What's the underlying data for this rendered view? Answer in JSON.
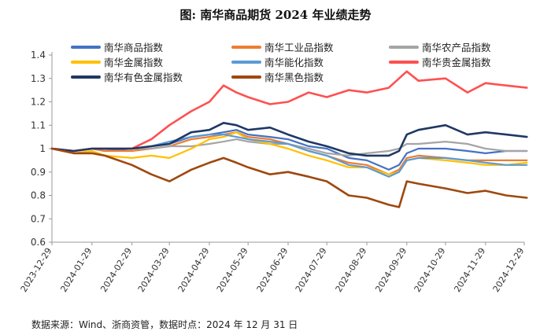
{
  "header": {
    "title": "图:   南华商品期货 2024 年业绩走势"
  },
  "footer": {
    "source": "数据来源：Wind、浙商资管，数据时点：2024 年 12 月 31 日"
  },
  "chart_data": {
    "type": "line",
    "title": "南华商品期货 2024 年业绩走势",
    "ylim": [
      0.6,
      1.4
    ],
    "yticks": [
      "0.6",
      "0.7",
      "0.8",
      "0.9",
      "1",
      "1.1",
      "1.2",
      "1.3",
      "1.4"
    ],
    "x_ticks": [
      "2023-12-29",
      "2024-01-29",
      "2024-02-29",
      "2024-03-29",
      "2024-04-29",
      "2024-05-29",
      "2024-06-29",
      "2024-07-29",
      "2024-08-29",
      "2024-09-29",
      "2024-10-29",
      "2024-11-29",
      "2024-12-29"
    ],
    "x_points": [
      "2023-12-29",
      "2024-01-15",
      "2024-01-29",
      "2024-02-08",
      "2024-02-29",
      "2024-03-15",
      "2024-03-29",
      "2024-04-15",
      "2024-04-29",
      "2024-05-10",
      "2024-05-20",
      "2024-05-29",
      "2024-06-15",
      "2024-06-29",
      "2024-07-15",
      "2024-07-29",
      "2024-08-15",
      "2024-08-29",
      "2024-09-15",
      "2024-09-23",
      "2024-09-29",
      "2024-10-08",
      "2024-10-29",
      "2024-11-15",
      "2024-11-29",
      "2024-12-15",
      "2024-12-31"
    ],
    "series": [
      {
        "name": "南华商品指数",
        "color": "#4472C4",
        "width": 2.2,
        "values": [
          1.0,
          0.99,
          1.0,
          0.99,
          1.0,
          1.01,
          1.02,
          1.05,
          1.06,
          1.07,
          1.08,
          1.06,
          1.05,
          1.04,
          1.01,
          1.0,
          0.96,
          0.95,
          0.91,
          0.93,
          0.98,
          1.0,
          1.0,
          0.99,
          0.98,
          0.99,
          0.99
        ]
      },
      {
        "name": "南华工业品指数",
        "color": "#ED7D31",
        "width": 2.2,
        "values": [
          1.0,
          0.99,
          1.0,
          0.99,
          0.99,
          1.0,
          1.01,
          1.04,
          1.05,
          1.06,
          1.07,
          1.05,
          1.04,
          1.02,
          0.99,
          0.97,
          0.94,
          0.93,
          0.89,
          0.91,
          0.96,
          0.97,
          0.96,
          0.95,
          0.95,
          0.95,
          0.95
        ]
      },
      {
        "name": "南华农产品指数",
        "color": "#A5A5A5",
        "width": 2.2,
        "values": [
          1.0,
          0.99,
          1.0,
          1.0,
          1.0,
          1.0,
          1.01,
          1.01,
          1.02,
          1.03,
          1.04,
          1.03,
          1.02,
          1.02,
          1.0,
          0.98,
          0.97,
          0.98,
          0.99,
          1.0,
          1.02,
          1.02,
          1.03,
          1.02,
          1.0,
          0.99,
          0.99
        ]
      },
      {
        "name": "南华金属指数",
        "color": "#FFC000",
        "width": 2.2,
        "values": [
          1.0,
          0.98,
          0.99,
          0.97,
          0.96,
          0.97,
          0.96,
          1.0,
          1.04,
          1.05,
          1.07,
          1.04,
          1.02,
          1.0,
          0.97,
          0.95,
          0.92,
          0.92,
          0.89,
          0.9,
          0.95,
          0.96,
          0.95,
          0.94,
          0.93,
          0.93,
          0.94
        ]
      },
      {
        "name": "南华能化指数",
        "color": "#5B9BD5",
        "width": 2.2,
        "values": [
          1.0,
          0.99,
          1.0,
          1.0,
          1.0,
          1.01,
          1.03,
          1.05,
          1.06,
          1.06,
          1.05,
          1.04,
          1.03,
          1.02,
          0.99,
          0.97,
          0.93,
          0.92,
          0.88,
          0.9,
          0.95,
          0.96,
          0.96,
          0.95,
          0.94,
          0.93,
          0.93
        ]
      },
      {
        "name": "南华贵金属指数",
        "color": "#FF5050",
        "width": 2.6,
        "values": [
          1.0,
          0.99,
          1.0,
          1.0,
          1.0,
          1.04,
          1.1,
          1.16,
          1.2,
          1.27,
          1.24,
          1.22,
          1.19,
          1.2,
          1.24,
          1.22,
          1.25,
          1.24,
          1.26,
          1.3,
          1.33,
          1.29,
          1.3,
          1.24,
          1.28,
          1.27,
          1.26
        ]
      },
      {
        "name": "南华有色金属指数",
        "color": "#203864",
        "width": 2.6,
        "values": [
          1.0,
          0.99,
          1.0,
          1.0,
          1.0,
          1.01,
          1.02,
          1.07,
          1.08,
          1.11,
          1.1,
          1.08,
          1.09,
          1.06,
          1.03,
          1.01,
          0.98,
          0.97,
          0.97,
          0.99,
          1.06,
          1.08,
          1.1,
          1.06,
          1.07,
          1.06,
          1.05
        ]
      },
      {
        "name": "南华黑色指数",
        "color": "#9E480E",
        "width": 2.6,
        "values": [
          1.0,
          0.98,
          0.98,
          0.97,
          0.93,
          0.89,
          0.86,
          0.91,
          0.94,
          0.96,
          0.94,
          0.92,
          0.89,
          0.9,
          0.88,
          0.86,
          0.8,
          0.79,
          0.76,
          0.75,
          0.86,
          0.85,
          0.83,
          0.81,
          0.82,
          0.8,
          0.79
        ]
      }
    ]
  }
}
